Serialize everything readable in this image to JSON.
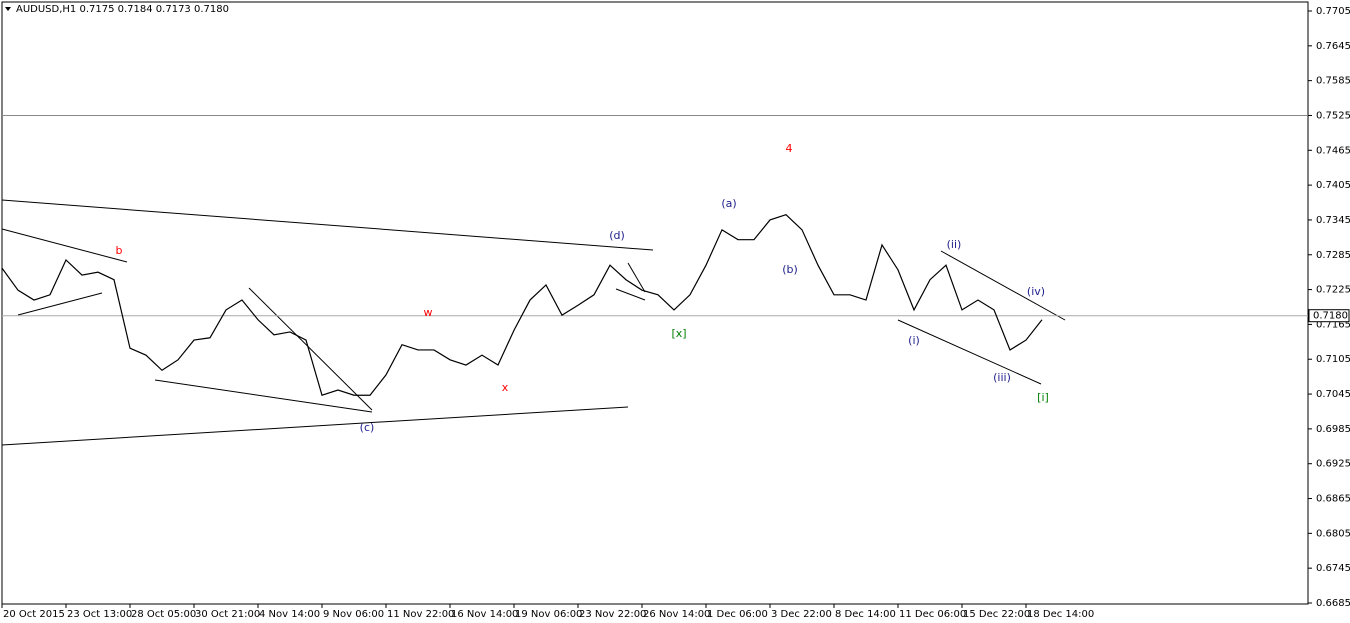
{
  "chart_data": {
    "type": "line",
    "title": "AUDUSD,H1  0.7175 0.7184 0.7173 0.7180",
    "categories": [
      "20 Oct 2015",
      null,
      null,
      null,
      "23 Oct 13:00",
      null,
      null,
      null,
      "28 Oct 05:00",
      null,
      null,
      null,
      "30 Oct 21:00",
      null,
      null,
      null,
      "4 Nov 14:00",
      null,
      null,
      null,
      "9 Nov 06:00",
      null,
      null,
      null,
      "11 Nov 22:00",
      null,
      null,
      null,
      "16 Nov 14:00",
      null,
      null,
      null,
      "19 Nov 06:00",
      null,
      null,
      null,
      "23 Nov 22:00",
      null,
      null,
      null,
      "26 Nov 14:00",
      null,
      null,
      null,
      "1 Dec 06:00",
      null,
      null,
      null,
      "3 Dec 22:00",
      null,
      null,
      null,
      "8 Dec 14:00",
      null,
      null,
      null,
      "11 Dec 06:00",
      null,
      null,
      null,
      "15 Dec 22:00",
      null,
      null,
      null,
      "18 Dec 14:00",
      null
    ],
    "values": [
      0.7262,
      0.7224,
      0.7207,
      0.7216,
      0.7276,
      0.725,
      0.7255,
      0.7242,
      0.7124,
      0.7112,
      0.7086,
      0.7104,
      0.7138,
      0.7142,
      0.719,
      0.7207,
      0.7173,
      0.7147,
      0.7152,
      0.7138,
      0.7043,
      0.7052,
      0.7043,
      0.7043,
      0.7078,
      0.713,
      0.7121,
      0.7121,
      0.7104,
      0.7095,
      0.7112,
      0.7095,
      0.7155,
      0.7207,
      0.7233,
      0.7181,
      0.7198,
      0.7216,
      0.7267,
      0.7242,
      0.7224,
      0.7216,
      0.719,
      0.7216,
      0.7267,
      0.7328,
      0.7311,
      0.7311,
      0.7345,
      0.7354,
      0.7328,
      0.7267,
      0.7216,
      0.7216,
      0.7207,
      0.7302,
      0.7259,
      0.719,
      0.7242,
      0.7267,
      0.719,
      0.7207,
      0.719,
      0.7121,
      0.7138,
      0.7173
    ],
    "color": "#000000",
    "ylim": [
      0.6685,
      0.7705
    ],
    "yticks": [
      0.6685,
      0.6745,
      0.6805,
      0.6865,
      0.6925,
      0.6985,
      0.7045,
      0.7105,
      0.7165,
      0.7225,
      0.7285,
      0.7345,
      0.7405,
      0.7465,
      0.7525,
      0.7585,
      0.7645,
      0.7705
    ],
    "current_price": {
      "value": 0.718,
      "label": "0.7180"
    },
    "levels": [
      0.7525
    ],
    "annotations": [
      {
        "text": "b",
        "color": "#ff0000"
      },
      {
        "text": "w",
        "color": "#ff0000"
      },
      {
        "text": "x",
        "color": "#ff0000"
      },
      {
        "text": "4",
        "color": "#ff0000"
      },
      {
        "text": "(c)",
        "color": "#1e1e8c"
      },
      {
        "text": "(d)",
        "color": "#1e1e8c"
      },
      {
        "text": "(a)",
        "color": "#1e1e8c"
      },
      {
        "text": "(b)",
        "color": "#1e1e8c"
      },
      {
        "text": "[x]",
        "color": "#008000"
      },
      {
        "text": "(i)",
        "color": "#1e1e8c"
      },
      {
        "text": "(ii)",
        "color": "#1e1e8c"
      },
      {
        "text": "(iii)",
        "color": "#1e1e8c"
      },
      {
        "text": "(iv)",
        "color": "#1e1e8c"
      },
      {
        "text": "[i]",
        "color": "#008000"
      }
    ]
  }
}
